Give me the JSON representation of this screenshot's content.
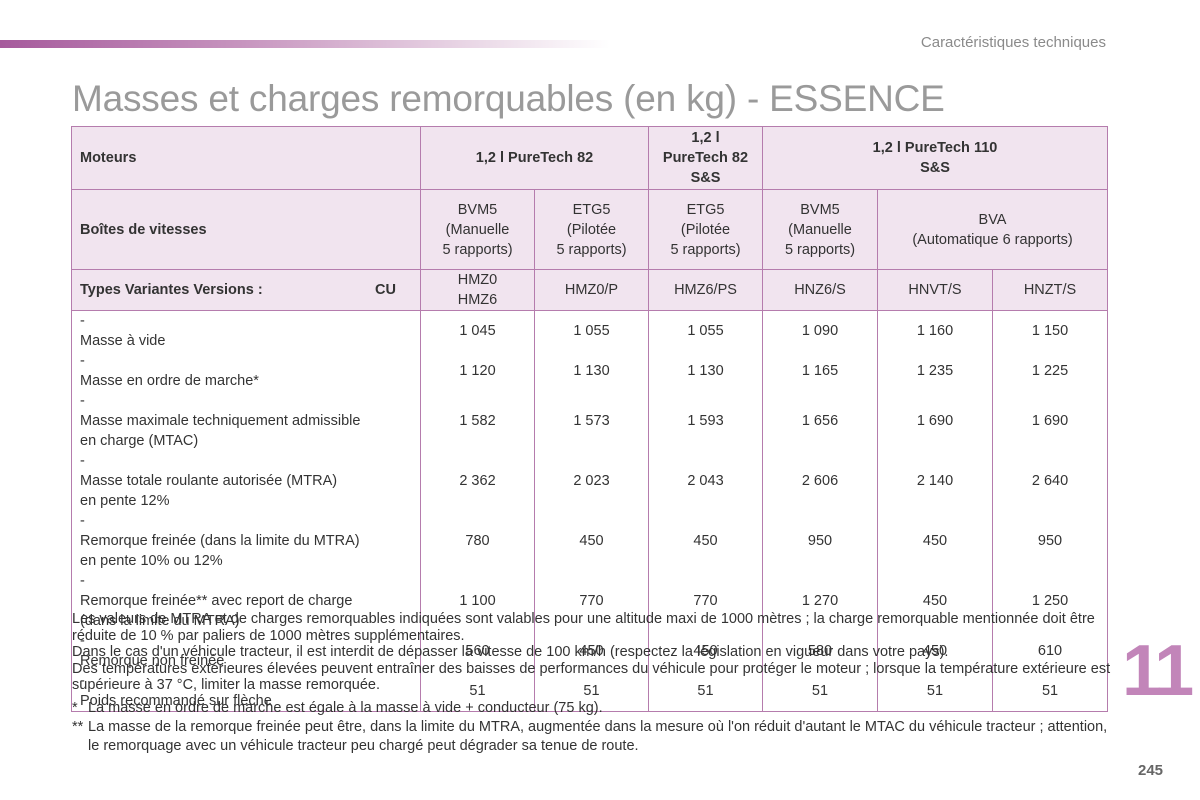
{
  "header": {
    "section_label": "Caractéristiques techniques"
  },
  "title": "Masses et charges remorquables (en kg) - ESSENCE",
  "table": {
    "engines_label": "Moteurs",
    "engines": [
      {
        "line1": "1,2 l PureTech 82"
      },
      {
        "line1": "1,2 l",
        "line2": "PureTech 82",
        "line3": "S&S"
      },
      {
        "line1": "1,2 l PureTech 110",
        "line2": "S&S"
      }
    ],
    "gearbox_label": "Boîtes de vitesses",
    "gearboxes": [
      {
        "l1": "BVM5",
        "l2": "(Manuelle",
        "l3": "5 rapports)"
      },
      {
        "l1": "ETG5",
        "l2": "(Pilotée",
        "l3": "5 rapports)"
      },
      {
        "l1": "ETG5",
        "l2": "(Pilotée",
        "l3": "5 rapports)"
      },
      {
        "l1": "BVM5",
        "l2": "(Manuelle",
        "l3": "5 rapports)"
      },
      {
        "l1": "BVA",
        "l2": "(Automatique 6 rapports)"
      }
    ],
    "types_label": "Types Variantes Versions :",
    "types_cu": "CU",
    "types": [
      {
        "l1": "HMZ0",
        "l2": "HMZ6"
      },
      {
        "l1": "HMZ0/P"
      },
      {
        "l1": "HMZ6/PS"
      },
      {
        "l1": "HNZ6/S"
      },
      {
        "l1": "HNVT/S"
      },
      {
        "l1": "HNZT/S"
      }
    ],
    "dash": "-",
    "rows": [
      {
        "l1": "Masse à vide",
        "values": [
          "1 045",
          "1 055",
          "1 055",
          "1 090",
          "1 160",
          "1 150"
        ]
      },
      {
        "l1": "Masse en ordre de marche*",
        "values": [
          "1 120",
          "1 130",
          "1 130",
          "1 165",
          "1 235",
          "1 225"
        ]
      },
      {
        "l1": "Masse maximale techniquement admissible",
        "l2": "en charge (MTAC)",
        "values": [
          "1 582",
          "1 573",
          "1 593",
          "1 656",
          "1 690",
          "1 690"
        ]
      },
      {
        "l1": "Masse totale roulante autorisée (MTRA)",
        "l2": "en pente 12%",
        "values": [
          "2 362",
          "2 023",
          "2 043",
          "2 606",
          "2 140",
          "2 640"
        ]
      },
      {
        "l1": "Remorque freinée (dans la limite du MTRA)",
        "l2": "en pente 10% ou 12%",
        "values": [
          "780",
          "450",
          "450",
          "950",
          "450",
          "950"
        ]
      },
      {
        "l1": "Remorque freinée** avec report de charge",
        "l2": "(dans la limite du MTRA)",
        "values": [
          "1 100",
          "770",
          "770",
          "1 270",
          "450",
          "1 250"
        ]
      },
      {
        "l1": "Remorque non freinée",
        "values": [
          "560",
          "450",
          "450",
          "580",
          "450",
          "610"
        ]
      },
      {
        "l1": "Poids recommandé sur flèche",
        "values": [
          "51",
          "51",
          "51",
          "51",
          "51",
          "51"
        ]
      }
    ]
  },
  "notes": {
    "paragraphs": [
      "Les valeurs de MTRA et de charges remorquables indiquées sont valables pour une altitude maxi de 1000 mètres ; la charge remorquable mentionnée doit être réduite de 10 % par paliers de 1000 mètres supplémentaires.",
      "Dans le cas d'un véhicule tracteur, il est interdit de dépasser la vitesse de 100 km/h (respectez la législation en vigueur dans votre pays).",
      "Des températures extérieures élevées peuvent entraîner des baisses de performances du véhicule pour protéger le moteur ; lorsque la température extérieure est supérieure à 37 °C, limiter la masse remorquée."
    ],
    "footnotes": [
      {
        "mark": "*",
        "text": "La masse en ordre de marche est égale à la masse à vide + conducteur (75 kg)."
      },
      {
        "mark": "**",
        "text": "La masse de la remorque freinée peut être, dans la limite du MTRA, augmentée dans la mesure où l'on réduit d'autant le MTAC du véhicule tracteur ; attention, le remorquage avec un véhicule tracteur peu chargé peut dégrader sa tenue de route."
      }
    ]
  },
  "chapter_number": "11",
  "page_number": "245",
  "colors": {
    "accent": "#b57cad",
    "header_bg": "#f1e4ef",
    "chapter": "#c285b9",
    "title": "#9a9a9a"
  }
}
